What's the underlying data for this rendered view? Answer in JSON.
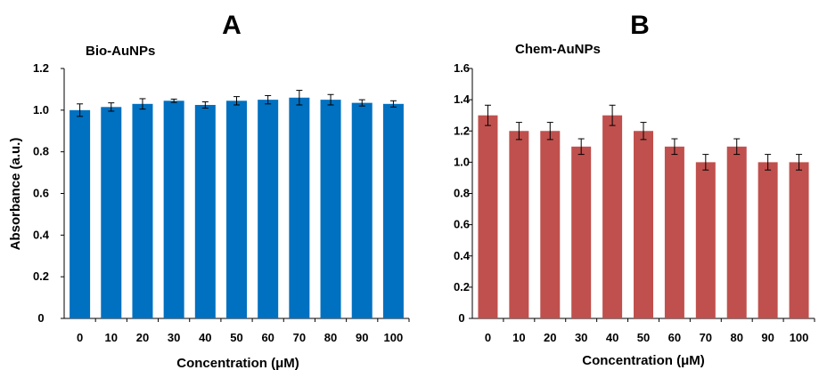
{
  "panels": [
    "A",
    "B"
  ],
  "chart_data": [
    {
      "type": "bar",
      "title": "Bio-AuNPs",
      "xlabel": "Concentration (μM)",
      "ylabel": "Absorbance (a.u.)",
      "categories": [
        "0",
        "10",
        "20",
        "30",
        "40",
        "50",
        "60",
        "70",
        "80",
        "90",
        "100"
      ],
      "values": [
        1.0,
        1.015,
        1.03,
        1.045,
        1.025,
        1.045,
        1.05,
        1.06,
        1.05,
        1.035,
        1.03
      ],
      "errors": [
        0.03,
        0.02,
        0.025,
        0.008,
        0.015,
        0.02,
        0.02,
        0.035,
        0.025,
        0.015,
        0.015
      ],
      "ylim": [
        0,
        1.2
      ],
      "yticks": [
        "0",
        "0.2",
        "0.4",
        "0.6",
        "0.8",
        "1.0",
        "1.2"
      ],
      "color": "#0070C0",
      "grid": false,
      "legend": "none"
    },
    {
      "type": "bar",
      "title": "Chem-AuNPs",
      "xlabel": "Concentration (μM)",
      "ylabel": "",
      "categories": [
        "0",
        "10",
        "20",
        "30",
        "40",
        "50",
        "60",
        "70",
        "80",
        "90",
        "100"
      ],
      "values": [
        1.3,
        1.2,
        1.2,
        1.1,
        1.3,
        1.2,
        1.1,
        1.0,
        1.1,
        1.0,
        1.0
      ],
      "errors": [
        0.065,
        0.055,
        0.055,
        0.05,
        0.065,
        0.055,
        0.05,
        0.05,
        0.05,
        0.05,
        0.05
      ],
      "ylim": [
        0,
        1.6
      ],
      "yticks": [
        "0",
        "0.2",
        "0.4",
        "0.6",
        "0.8",
        "1.0",
        "1.2",
        "1.4",
        "1.6"
      ],
      "color": "#C0504D",
      "grid": false,
      "legend": "none"
    }
  ]
}
